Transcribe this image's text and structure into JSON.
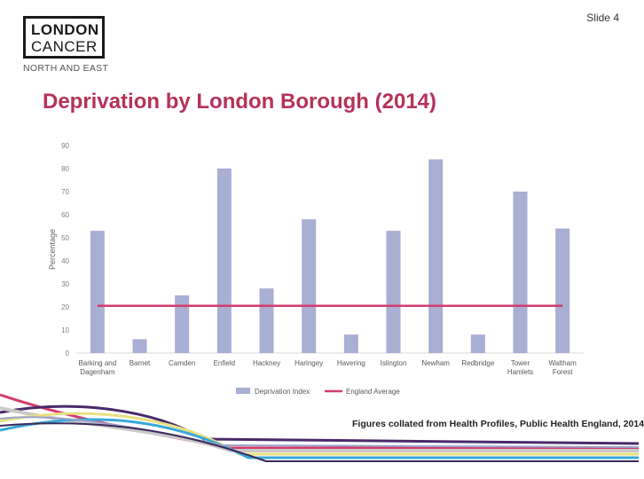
{
  "slide": {
    "number_label": "Slide 4"
  },
  "logo": {
    "line1": "LONDON",
    "line2": "CANCER",
    "subtitle": "NORTH AND EAST"
  },
  "title": "Deprivation by London Borough (2014)",
  "source": "Figures collated from Health Profiles, Public Health England, 2014",
  "colors": {
    "bar": "#a9aed3",
    "average_line": "#d23c6e",
    "title": "#b5325a"
  },
  "chart_data": {
    "type": "bar",
    "categories": [
      [
        "Barking and",
        "Dagenham"
      ],
      [
        "Barnet"
      ],
      [
        "Camden"
      ],
      [
        "Enfield"
      ],
      [
        "Hackney"
      ],
      [
        "Haringey"
      ],
      [
        "Havering"
      ],
      [
        "Islington"
      ],
      [
        "Newham"
      ],
      [
        "Redbridge"
      ],
      [
        "Tower",
        "Hamlets"
      ],
      [
        "Waltham",
        "Forest"
      ]
    ],
    "series": [
      {
        "name": "Deprivation Index",
        "type": "bar",
        "values": [
          53,
          6,
          25,
          80,
          28,
          58,
          8,
          53,
          84,
          8,
          70,
          54
        ]
      },
      {
        "name": "England Average",
        "type": "line",
        "values": [
          20.5,
          20.5,
          20.5,
          20.5,
          20.5,
          20.5,
          20.5,
          20.5,
          20.5,
          20.5,
          20.5,
          20.5
        ]
      }
    ],
    "ylabel": "Percentage",
    "ylim": [
      0,
      90
    ],
    "yticks": [
      0,
      10,
      20,
      30,
      40,
      50,
      60,
      70,
      80,
      90
    ],
    "grid": false,
    "legend": "bottom"
  }
}
